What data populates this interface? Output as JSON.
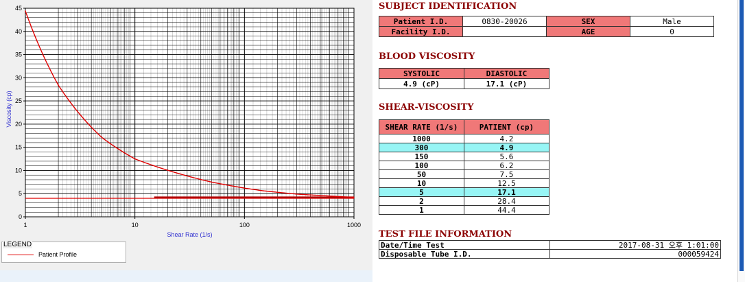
{
  "chart_data": {
    "type": "line",
    "x_scale": "log",
    "xlim": [
      1,
      1000
    ],
    "ylim": [
      0,
      45
    ],
    "xlabel": "Shear Rate (1/s)",
    "ylabel": "Viscosity (cp)",
    "x_ticks": [
      "1",
      "10",
      "100",
      "1000"
    ],
    "y_ticks": [
      "0",
      "5",
      "10",
      "15",
      "20",
      "25",
      "30",
      "35",
      "40",
      "45"
    ],
    "grid": true,
    "legend_title": "LEGEND",
    "legend_placement": "bottom-left",
    "series": [
      {
        "name": "Patient Profile",
        "color": "#e00000",
        "x": [
          1,
          2,
          5,
          10,
          50,
          100,
          150,
          300,
          1000
        ],
        "y": [
          44.4,
          28.4,
          17.1,
          12.5,
          7.5,
          6.2,
          5.6,
          4.9,
          4.2
        ]
      }
    ],
    "reference_line": {
      "y": 4.0,
      "color": "#e00000"
    },
    "reference_segment": {
      "x_start": 15,
      "x_end": 1000,
      "y": 4.2,
      "color": "#b00000"
    }
  },
  "subject": {
    "title": "SUBJECT IDENTIFICATION",
    "patient_id_label": "Patient I.D.",
    "patient_id": "0830-20026",
    "sex_label": "SEX",
    "sex": "Male",
    "facility_label": "Facility I.D.",
    "facility": "",
    "age_label": "AGE",
    "age": "0"
  },
  "blood": {
    "title": "BLOOD VISCOSITY",
    "systolic_label": "SYSTOLIC",
    "diastolic_label": "DIASTOLIC",
    "systolic": "4.9 (cP)",
    "diastolic": "17.1 (cP)"
  },
  "shear": {
    "title": "SHEAR-VISCOSITY",
    "col_rate": "SHEAR RATE (1/s)",
    "col_patient": "PATIENT (cp)",
    "rows": [
      {
        "rate": "1000",
        "value": "4.2",
        "hl": false
      },
      {
        "rate": "300",
        "value": "4.9",
        "hl": true
      },
      {
        "rate": "150",
        "value": "5.6",
        "hl": false
      },
      {
        "rate": "100",
        "value": "6.2",
        "hl": false
      },
      {
        "rate": "50",
        "value": "7.5",
        "hl": false
      },
      {
        "rate": "10",
        "value": "12.5",
        "hl": false
      },
      {
        "rate": "5",
        "value": "17.1",
        "hl": true
      },
      {
        "rate": "2",
        "value": "28.4",
        "hl": false
      },
      {
        "rate": "1",
        "value": "44.4",
        "hl": false
      }
    ],
    "highlight_color": "#97f5f5"
  },
  "testfile": {
    "title": "TEST FILE INFORMATION",
    "date_label": "Date/Time Test",
    "date_value": "2017-08-31 오후 1:01:00",
    "tube_label": "Disposable Tube I.D.",
    "tube_value": "000059424"
  }
}
